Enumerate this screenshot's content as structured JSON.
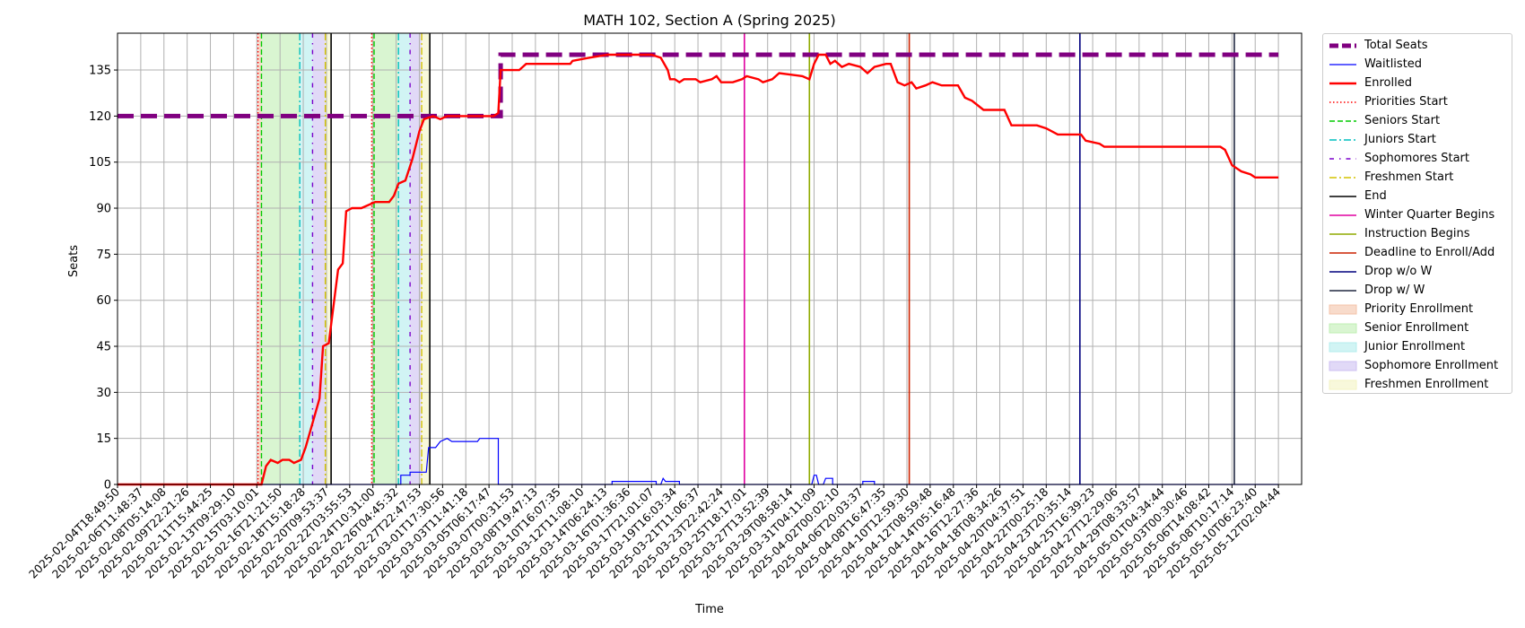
{
  "chart_data": {
    "type": "line",
    "title": "MATH 102, Section A (Spring 2025)",
    "xlabel": "Time",
    "ylabel": "Seats",
    "ylim": [
      0,
      147
    ],
    "xlim": [
      "2025-02-04T18:49:50",
      "2025-05-13T00:00:00"
    ],
    "grid": true,
    "legend_position": "outside-right",
    "yticks": [
      0,
      15,
      30,
      45,
      60,
      75,
      90,
      105,
      120,
      135
    ],
    "xticks": [
      "2025-02-04T18:49:50",
      "2025-02-06T11:48:37",
      "2025-02-08T05:14:08",
      "2025-02-09T22:21:26",
      "2025-02-11T15:44:25",
      "2025-02-13T09:29:10",
      "2025-02-15T03:10:01",
      "2025-02-16T21:21:50",
      "2025-02-18T15:18:28",
      "2025-02-20T09:53:37",
      "2025-02-22T03:55:53",
      "2025-02-24T10:31:00",
      "2025-02-26T04:45:32",
      "2025-02-27T22:47:53",
      "2025-03-01T17:30:56",
      "2025-03-03T11:41:18",
      "2025-03-05T06:17:47",
      "2025-03-07T00:31:53",
      "2025-03-08T19:47:13",
      "2025-03-10T16:07:35",
      "2025-03-12T11:08:10",
      "2025-03-14T06:24:13",
      "2025-03-16T01:36:36",
      "2025-03-17T21:01:07",
      "2025-03-19T16:03:34",
      "2025-03-21T11:06:37",
      "2025-03-23T22:42:24",
      "2025-03-25T18:17:01",
      "2025-03-27T13:52:39",
      "2025-03-29T08:58:14",
      "2025-03-31T04:11:09",
      "2025-04-02T00:02:10",
      "2025-04-06T20:03:37",
      "2025-04-08T16:47:35",
      "2025-04-10T12:59:30",
      "2025-04-12T08:59:48",
      "2025-04-14T05:16:48",
      "2025-04-16T12:27:36",
      "2025-04-18T08:34:26",
      "2025-04-20T04:37:51",
      "2025-04-22T00:25:18",
      "2025-04-23T20:35:14",
      "2025-04-25T16:39:23",
      "2025-04-27T12:29:06",
      "2025-04-29T08:33:57",
      "2025-05-01T04:34:44",
      "2025-05-03T00:30:46",
      "2025-05-06T14:08:42",
      "2025-05-08T10:17:14",
      "2025-05-10T06:23:40",
      "2025-05-12T02:04:44"
    ],
    "series": [
      {
        "name": "Total Seats",
        "color": "#800080",
        "style": "dashed-thick",
        "points": [
          [
            0,
            120
          ],
          [
            16.5,
            120
          ],
          [
            16.5,
            140
          ],
          [
            50,
            140
          ]
        ]
      },
      {
        "name": "Waitlisted",
        "color": "#0000ff",
        "style": "solid-thin",
        "points": [
          [
            0,
            0
          ],
          [
            12.2,
            0
          ],
          [
            12.2,
            3
          ],
          [
            12.6,
            3
          ],
          [
            12.6,
            4
          ],
          [
            13.3,
            4
          ],
          [
            13.4,
            12
          ],
          [
            13.7,
            12
          ],
          [
            13.9,
            14
          ],
          [
            14.2,
            15
          ],
          [
            14.4,
            14
          ],
          [
            15.5,
            14
          ],
          [
            15.6,
            15
          ],
          [
            16.4,
            15
          ],
          [
            16.4,
            0
          ],
          [
            21.3,
            0
          ],
          [
            21.3,
            1
          ],
          [
            23.2,
            1
          ],
          [
            23.2,
            0
          ],
          [
            23.4,
            0
          ],
          [
            23.5,
            2
          ],
          [
            23.6,
            1
          ],
          [
            24.2,
            1
          ],
          [
            24.2,
            0
          ],
          [
            29.9,
            0
          ],
          [
            30,
            3
          ],
          [
            30.1,
            3
          ],
          [
            30.2,
            0
          ],
          [
            30.4,
            0
          ],
          [
            30.5,
            2
          ],
          [
            30.8,
            2
          ],
          [
            30.8,
            0
          ],
          [
            32.1,
            0
          ],
          [
            32.1,
            1
          ],
          [
            32.6,
            1
          ],
          [
            32.6,
            0
          ],
          [
            50,
            0
          ]
        ]
      },
      {
        "name": "Enrolled",
        "color": "#ff0000",
        "style": "solid-thick",
        "points": [
          [
            0,
            0
          ],
          [
            6.2,
            0
          ],
          [
            6.4,
            6
          ],
          [
            6.6,
            8
          ],
          [
            6.9,
            7
          ],
          [
            7.1,
            8
          ],
          [
            7.4,
            8
          ],
          [
            7.6,
            7
          ],
          [
            7.9,
            8
          ],
          [
            8.1,
            12
          ],
          [
            8.4,
            20
          ],
          [
            8.7,
            28
          ],
          [
            8.85,
            45
          ],
          [
            9.1,
            46
          ],
          [
            9.3,
            58
          ],
          [
            9.5,
            70
          ],
          [
            9.7,
            72
          ],
          [
            9.85,
            89
          ],
          [
            10.1,
            90
          ],
          [
            10.5,
            90
          ],
          [
            10.8,
            91
          ],
          [
            11.1,
            92
          ],
          [
            11.7,
            92
          ],
          [
            11.9,
            94
          ],
          [
            12.1,
            98
          ],
          [
            12.4,
            99
          ],
          [
            12.7,
            106
          ],
          [
            13,
            115
          ],
          [
            13.2,
            119
          ],
          [
            13.6,
            120
          ],
          [
            13.9,
            119
          ],
          [
            14.2,
            120
          ],
          [
            16.2,
            120
          ],
          [
            16.4,
            121
          ],
          [
            16.5,
            135
          ],
          [
            17.3,
            135
          ],
          [
            17.6,
            137
          ],
          [
            19.5,
            137
          ],
          [
            19.6,
            138
          ],
          [
            20.3,
            139
          ],
          [
            21.1,
            140
          ],
          [
            23,
            140
          ],
          [
            23.4,
            139
          ],
          [
            23.7,
            135
          ],
          [
            23.8,
            132
          ],
          [
            24,
            132
          ],
          [
            24.2,
            131
          ],
          [
            24.4,
            132
          ],
          [
            24.9,
            132
          ],
          [
            25.1,
            131
          ],
          [
            25.6,
            132
          ],
          [
            25.8,
            133
          ],
          [
            26,
            131
          ],
          [
            26.5,
            131
          ],
          [
            26.9,
            132
          ],
          [
            27.1,
            133
          ],
          [
            27.6,
            132
          ],
          [
            27.8,
            131
          ],
          [
            28.2,
            132
          ],
          [
            28.5,
            134
          ],
          [
            29.5,
            133
          ],
          [
            29.8,
            132
          ],
          [
            30,
            137
          ],
          [
            30.2,
            140
          ],
          [
            30.5,
            140
          ],
          [
            30.7,
            137
          ],
          [
            30.9,
            138
          ],
          [
            31.2,
            136
          ],
          [
            31.5,
            137
          ],
          [
            32,
            136
          ],
          [
            32.3,
            134
          ],
          [
            32.6,
            136
          ],
          [
            33.1,
            137
          ],
          [
            33.3,
            137
          ],
          [
            33.6,
            131
          ],
          [
            33.9,
            130
          ],
          [
            34.2,
            131
          ],
          [
            34.4,
            129
          ],
          [
            34.8,
            130
          ],
          [
            35.1,
            131
          ],
          [
            35.5,
            130
          ],
          [
            36.2,
            130
          ],
          [
            36.5,
            126
          ],
          [
            36.8,
            125
          ],
          [
            37.3,
            122
          ],
          [
            38.2,
            122
          ],
          [
            38.5,
            117
          ],
          [
            39.6,
            117
          ],
          [
            40,
            116
          ],
          [
            40.5,
            114
          ],
          [
            41.5,
            114
          ],
          [
            41.7,
            112
          ],
          [
            42.3,
            111
          ],
          [
            42.5,
            110
          ],
          [
            47.5,
            110
          ],
          [
            47.7,
            109
          ],
          [
            48,
            104
          ],
          [
            48.4,
            102
          ],
          [
            48.8,
            101
          ],
          [
            49,
            100
          ],
          [
            50,
            100
          ]
        ]
      }
    ],
    "vertical_markers": [
      {
        "name": "Priorities Start",
        "color": "#ff0000",
        "style": "dotted",
        "x": [
          6.05,
          10.95
        ]
      },
      {
        "name": "Seniors Start",
        "color": "#00cc00",
        "style": "dashed",
        "x": [
          6.2,
          11.05
        ]
      },
      {
        "name": "Juniors Start",
        "color": "#00bfbf",
        "style": "dashdot",
        "x": [
          7.85,
          12.1
        ]
      },
      {
        "name": "Sophomores Start",
        "color": "#7b00cc",
        "style": "dashdot-sparse",
        "x": [
          8.4,
          12.6
        ]
      },
      {
        "name": "Freshmen Start",
        "color": "#d4c400",
        "style": "dashdot",
        "x": [
          8.95,
          13.1
        ]
      },
      {
        "name": "End",
        "color": "#000000",
        "style": "solid",
        "x": [
          9.2,
          13.45
        ]
      },
      {
        "name": "Winter Quarter Begins",
        "color": "#e000a0",
        "style": "solid",
        "x": [
          27.0
        ]
      },
      {
        "name": "Instruction Begins",
        "color": "#8faa00",
        "style": "solid",
        "x": [
          29.8
        ]
      },
      {
        "name": "Deadline to Enroll/Add",
        "color": "#cc2200",
        "style": "solid",
        "x": [
          34.1
        ]
      },
      {
        "name": "Drop w/o W",
        "color": "#00007f",
        "style": "solid",
        "x": [
          41.45
        ]
      },
      {
        "name": "Drop w/ W",
        "color": "#202840",
        "style": "solid",
        "x": [
          48.1
        ]
      }
    ],
    "shaded_periods": [
      {
        "name": "Priority Enrollment",
        "color": "#f4c3a8",
        "ranges": [
          [
            6.05,
            6.2
          ],
          [
            10.95,
            11.05
          ]
        ]
      },
      {
        "name": "Senior Enrollment",
        "color": "#bfeeb3",
        "ranges": [
          [
            6.2,
            7.85
          ],
          [
            11.05,
            12.1
          ]
        ]
      },
      {
        "name": "Junior Enrollment",
        "color": "#b3ecec",
        "ranges": [
          [
            7.85,
            8.4
          ],
          [
            12.1,
            12.6
          ]
        ]
      },
      {
        "name": "Sophomore Enrollment",
        "color": "#cdbff2",
        "ranges": [
          [
            8.4,
            8.95
          ],
          [
            12.6,
            13.1
          ]
        ]
      },
      {
        "name": "Freshmen Enrollment",
        "color": "#f3f3c3",
        "ranges": [
          [
            8.95,
            9.2
          ],
          [
            13.1,
            13.45
          ]
        ]
      }
    ]
  }
}
